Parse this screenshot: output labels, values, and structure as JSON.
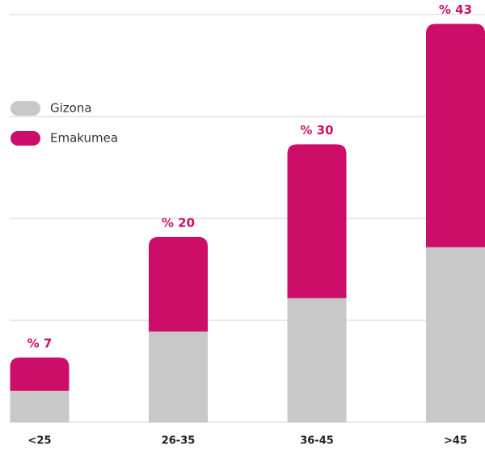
{
  "chart_data": {
    "type": "stacked_bar",
    "categories": [
      "<25",
      "26-35",
      "36-45",
      ">45"
    ],
    "series": [
      {
        "name": "Gizona",
        "color": "#c8c8c8",
        "values": [
          3.4,
          9.8,
          13.4,
          18.9
        ]
      },
      {
        "name": "Emakumea",
        "color": "#cc0e6a",
        "values": [
          3.6,
          10.2,
          16.6,
          24.1
        ]
      }
    ],
    "totals": [
      7,
      20,
      30,
      43
    ],
    "total_labels": [
      "% 7",
      "% 20",
      "% 30",
      "% 43"
    ],
    "ylim": [
      0,
      44
    ],
    "yticks": [
      0,
      11,
      22,
      33,
      44
    ],
    "grid": true,
    "legend": "left"
  }
}
